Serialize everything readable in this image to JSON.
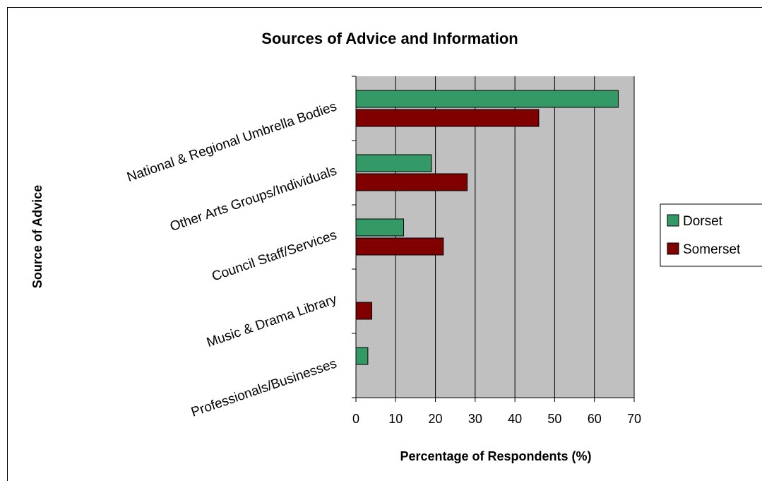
{
  "chart_data": {
    "type": "bar",
    "orientation": "horizontal",
    "title": "Sources of Advice and Information",
    "xlabel": "Percentage of Respondents (%)",
    "ylabel": "Source of Advice",
    "categories": [
      "National & Regional Umbrella Bodies",
      "Other Arts Groups/Individuals",
      "Council Staff/Services",
      "Music & Drama Library",
      "Professionals/Businesses"
    ],
    "series": [
      {
        "name": "Dorset",
        "color": "#339966",
        "values": [
          66,
          19,
          12,
          0,
          3
        ]
      },
      {
        "name": "Somerset",
        "color": "#800000",
        "values": [
          46,
          28,
          22,
          4,
          0
        ]
      }
    ],
    "xlim": [
      0,
      70
    ],
    "xticks": [
      0,
      10,
      20,
      30,
      40,
      50,
      60,
      70
    ],
    "grid": true,
    "plot_background": "#c0c0c0",
    "legend_position": "right"
  }
}
